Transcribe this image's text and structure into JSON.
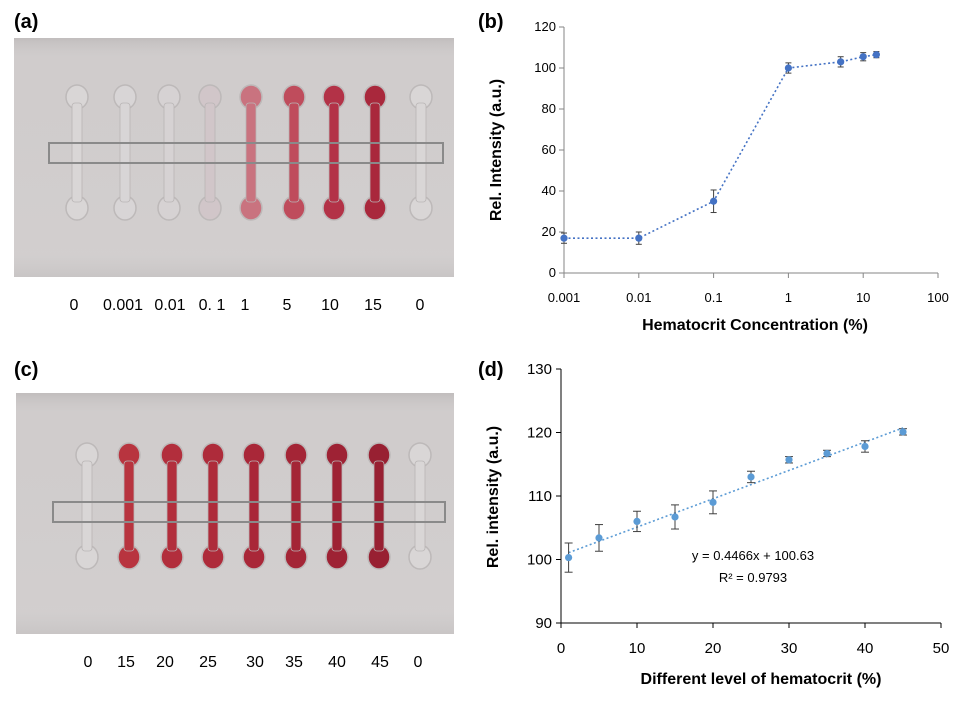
{
  "panels": {
    "a": {
      "label": "(a)",
      "concentrations": [
        "0",
        "0.001",
        "0.01",
        "0. 1",
        "1",
        "5",
        "10",
        "15",
        "0"
      ],
      "channel_colors": [
        "#d9d6d6",
        "#d8d5d6",
        "#d6d2d3",
        "#d1c6c9",
        "#c9737f",
        "#bf4c5c",
        "#b33247",
        "#a9283c",
        "#d9d6d6"
      ]
    },
    "c": {
      "label": "(c)",
      "concentrations": [
        "0",
        "15",
        "20",
        "25",
        "30",
        "35",
        "40",
        "45",
        "0"
      ],
      "channel_colors": [
        "#d9d6d6",
        "#b8343f",
        "#b22e3c",
        "#ae2b3a",
        "#a92738",
        "#a42536",
        "#9e2234",
        "#982032",
        "#d9d6d6"
      ]
    }
  },
  "chart_data": [
    {
      "panel": "(b)",
      "type": "line",
      "x_scale": "log",
      "x": [
        0.001,
        0.01,
        0.1,
        1,
        5,
        10,
        15
      ],
      "series": [
        {
          "values": [
            17,
            17,
            35,
            100,
            103,
            105.5,
            106.5
          ],
          "errors": [
            2.5,
            3,
            5.5,
            2.5,
            2.5,
            2,
            1.5
          ]
        }
      ],
      "title": "",
      "xlabel": "Hematocrit Concentration (%)",
      "ylabel": "Rel. Intensity (a.u.)",
      "xlim": [
        0.001,
        100
      ],
      "ylim": [
        0,
        120
      ],
      "xticks": [
        "0.001",
        "0.01",
        "0.1",
        "1",
        "10",
        "100"
      ],
      "yticks": [
        "0",
        "20",
        "40",
        "60",
        "80",
        "100",
        "120"
      ],
      "color": "#4472c4",
      "grid": false
    },
    {
      "panel": "(d)",
      "type": "scatter",
      "x": [
        1,
        5,
        10,
        15,
        20,
        25,
        30,
        35,
        40,
        45
      ],
      "series": [
        {
          "values": [
            100.3,
            103.4,
            106.0,
            106.7,
            109.0,
            113.0,
            115.7,
            116.7,
            117.8,
            120.1
          ],
          "errors": [
            2.3,
            2.1,
            1.6,
            1.9,
            1.8,
            0.9,
            0.5,
            0.5,
            0.9,
            0.5
          ]
        }
      ],
      "trendline": {
        "slope": 0.4466,
        "intercept": 100.63,
        "x_range": [
          1,
          45
        ]
      },
      "equation": "y = 0.4466x + 100.63",
      "r_squared": "R² = 0.9793",
      "title": "",
      "xlabel": "Different level of hematocrit  (%)",
      "ylabel": "Rel. intensity (a.u.)",
      "xlim": [
        0,
        50
      ],
      "ylim": [
        90,
        130
      ],
      "xticks": [
        "0",
        "10",
        "20",
        "30",
        "40",
        "50"
      ],
      "yticks": [
        "90",
        "100",
        "110",
        "120",
        "130"
      ],
      "color": "#5b9bd5",
      "grid": false
    }
  ]
}
